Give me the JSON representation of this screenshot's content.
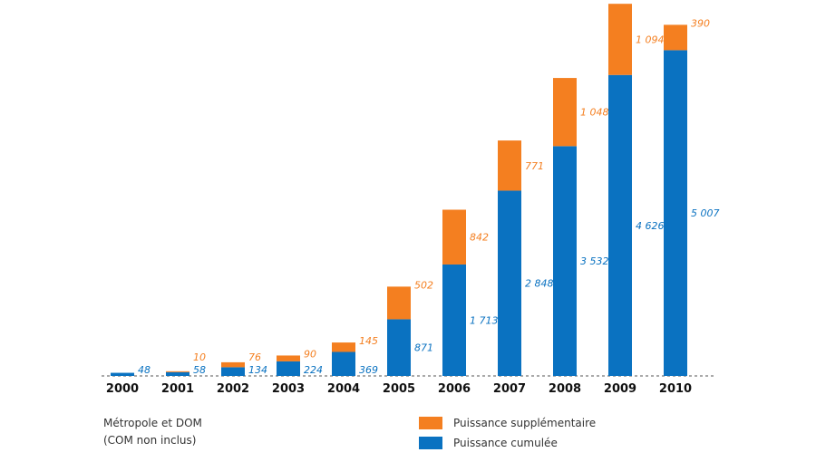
{
  "chart_data": {
    "type": "bar",
    "stacked": true,
    "categories": [
      "2000",
      "2001",
      "2002",
      "2003",
      "2004",
      "2005",
      "2006",
      "2007",
      "2008",
      "2009",
      "2010"
    ],
    "series": [
      {
        "name": "Puissance cumulée",
        "color": "#0a72c1",
        "values": [
          48,
          58,
          134,
          224,
          369,
          871,
          1713,
          2848,
          3532,
          4626,
          5007
        ],
        "labels": [
          "48",
          "58",
          "134",
          "224",
          "369",
          "871",
          "1 713",
          "2 848",
          "3 532",
          "4 626",
          "5 007"
        ]
      },
      {
        "name": "Puissance supplémentaire",
        "color": "#f47f20",
        "values": [
          null,
          10,
          76,
          90,
          145,
          502,
          842,
          771,
          1048,
          1094,
          390
        ],
        "labels": [
          "",
          "10",
          "76",
          "90",
          "145",
          "502",
          "842",
          "771",
          "1 048",
          "1 094",
          "390"
        ]
      }
    ],
    "ylim": [
      0,
      5500
    ],
    "grid": false,
    "legend_position": "bottom-right"
  },
  "note": {
    "line1": "Métropole et DOM",
    "line2": "(COM non inclus)"
  },
  "legend": {
    "extra_label": "Puissance supplémentaire",
    "cumul_label": "Puissance cumulée",
    "extra_color": "#f47f20",
    "cumul_color": "#0a72c1"
  }
}
